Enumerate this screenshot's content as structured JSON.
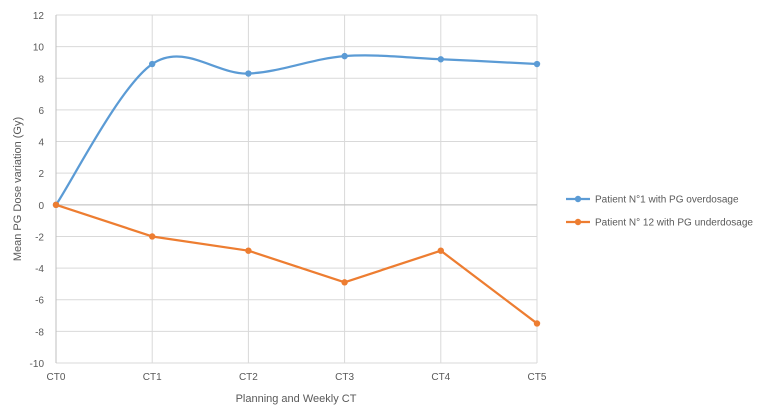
{
  "chart_data": {
    "type": "line",
    "title": "",
    "xlabel": "Planning and Weekly CT",
    "ylabel": "Mean PG Dose variation (Gy)",
    "categories": [
      "CT0",
      "CT1",
      "CT2",
      "CT3",
      "CT4",
      "CT5"
    ],
    "ylim": [
      -10,
      12
    ],
    "ytick_step": 2,
    "grid": true,
    "smooth_first_series": true,
    "legend_position": "right",
    "series": [
      {
        "name": "Patient N°1 with PG overdosage",
        "color": "#5b9bd5",
        "values": [
          0,
          8.9,
          8.3,
          9.4,
          9.2,
          8.9
        ]
      },
      {
        "name": "Patient N° 12 with PG underdosage",
        "color": "#ed7d31",
        "values": [
          0,
          -2.0,
          -2.9,
          -4.9,
          -2.9,
          -7.5
        ]
      }
    ]
  }
}
